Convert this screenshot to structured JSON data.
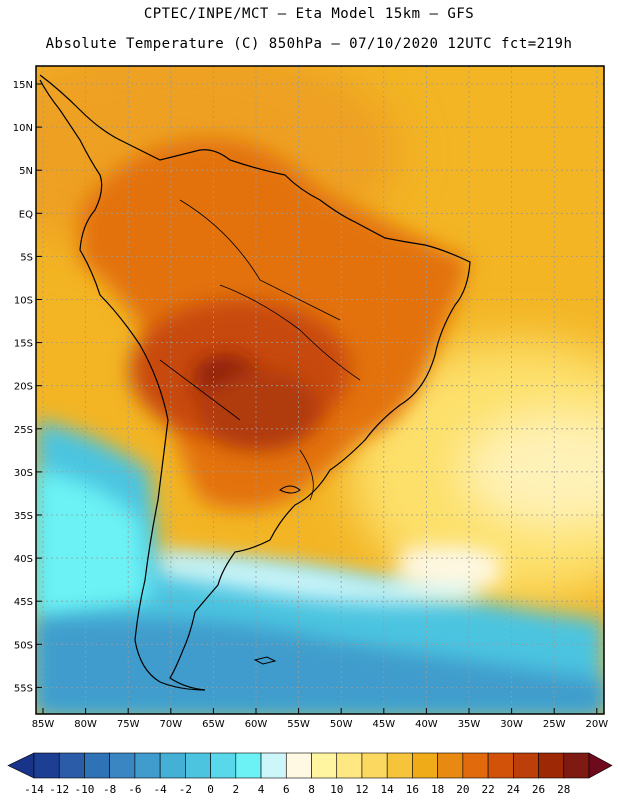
{
  "title_line1": "CPTEC/INPE/MCT –  Eta Model 15km – GFS",
  "title_line2": "Absolute Temperature (C) 850hPa – 07/10/2020 12UTC fct=219h",
  "lat_labels": [
    "15N",
    "10N",
    "5N",
    "EQ",
    "5S",
    "10S",
    "15S",
    "20S",
    "25S",
    "30S",
    "35S",
    "40S",
    "45S",
    "50S",
    "55S"
  ],
  "lon_labels": [
    "85W",
    "80W",
    "75W",
    "70W",
    "65W",
    "60W",
    "55W",
    "50W",
    "45W",
    "40W",
    "35W",
    "30W",
    "25W",
    "20W"
  ],
  "colorbar": {
    "labels": [
      "-14",
      "-12",
      "-10",
      "-8",
      "-6",
      "-4",
      "-2",
      "0",
      "2",
      "4",
      "6",
      "8",
      "10",
      "12",
      "14",
      "16",
      "18",
      "20",
      "22",
      "24",
      "26",
      "28"
    ],
    "colors": [
      "#1c3f94",
      "#2a5ca8",
      "#2f72b6",
      "#3a86c2",
      "#3f9ccc",
      "#45b0d6",
      "#4cc4e0",
      "#58d8ea",
      "#6cf2f4",
      "#cdf6fa",
      "#fff8e2",
      "#fff5a0",
      "#ffe882",
      "#fbd860",
      "#f6c43a",
      "#f0ac18",
      "#e88a12",
      "#e06a0c",
      "#d2520a",
      "#bc3e08",
      "#9c2806",
      "#7e1a12"
    ],
    "low_color": "#17338a",
    "high_color": "#6e0a1c"
  }
}
